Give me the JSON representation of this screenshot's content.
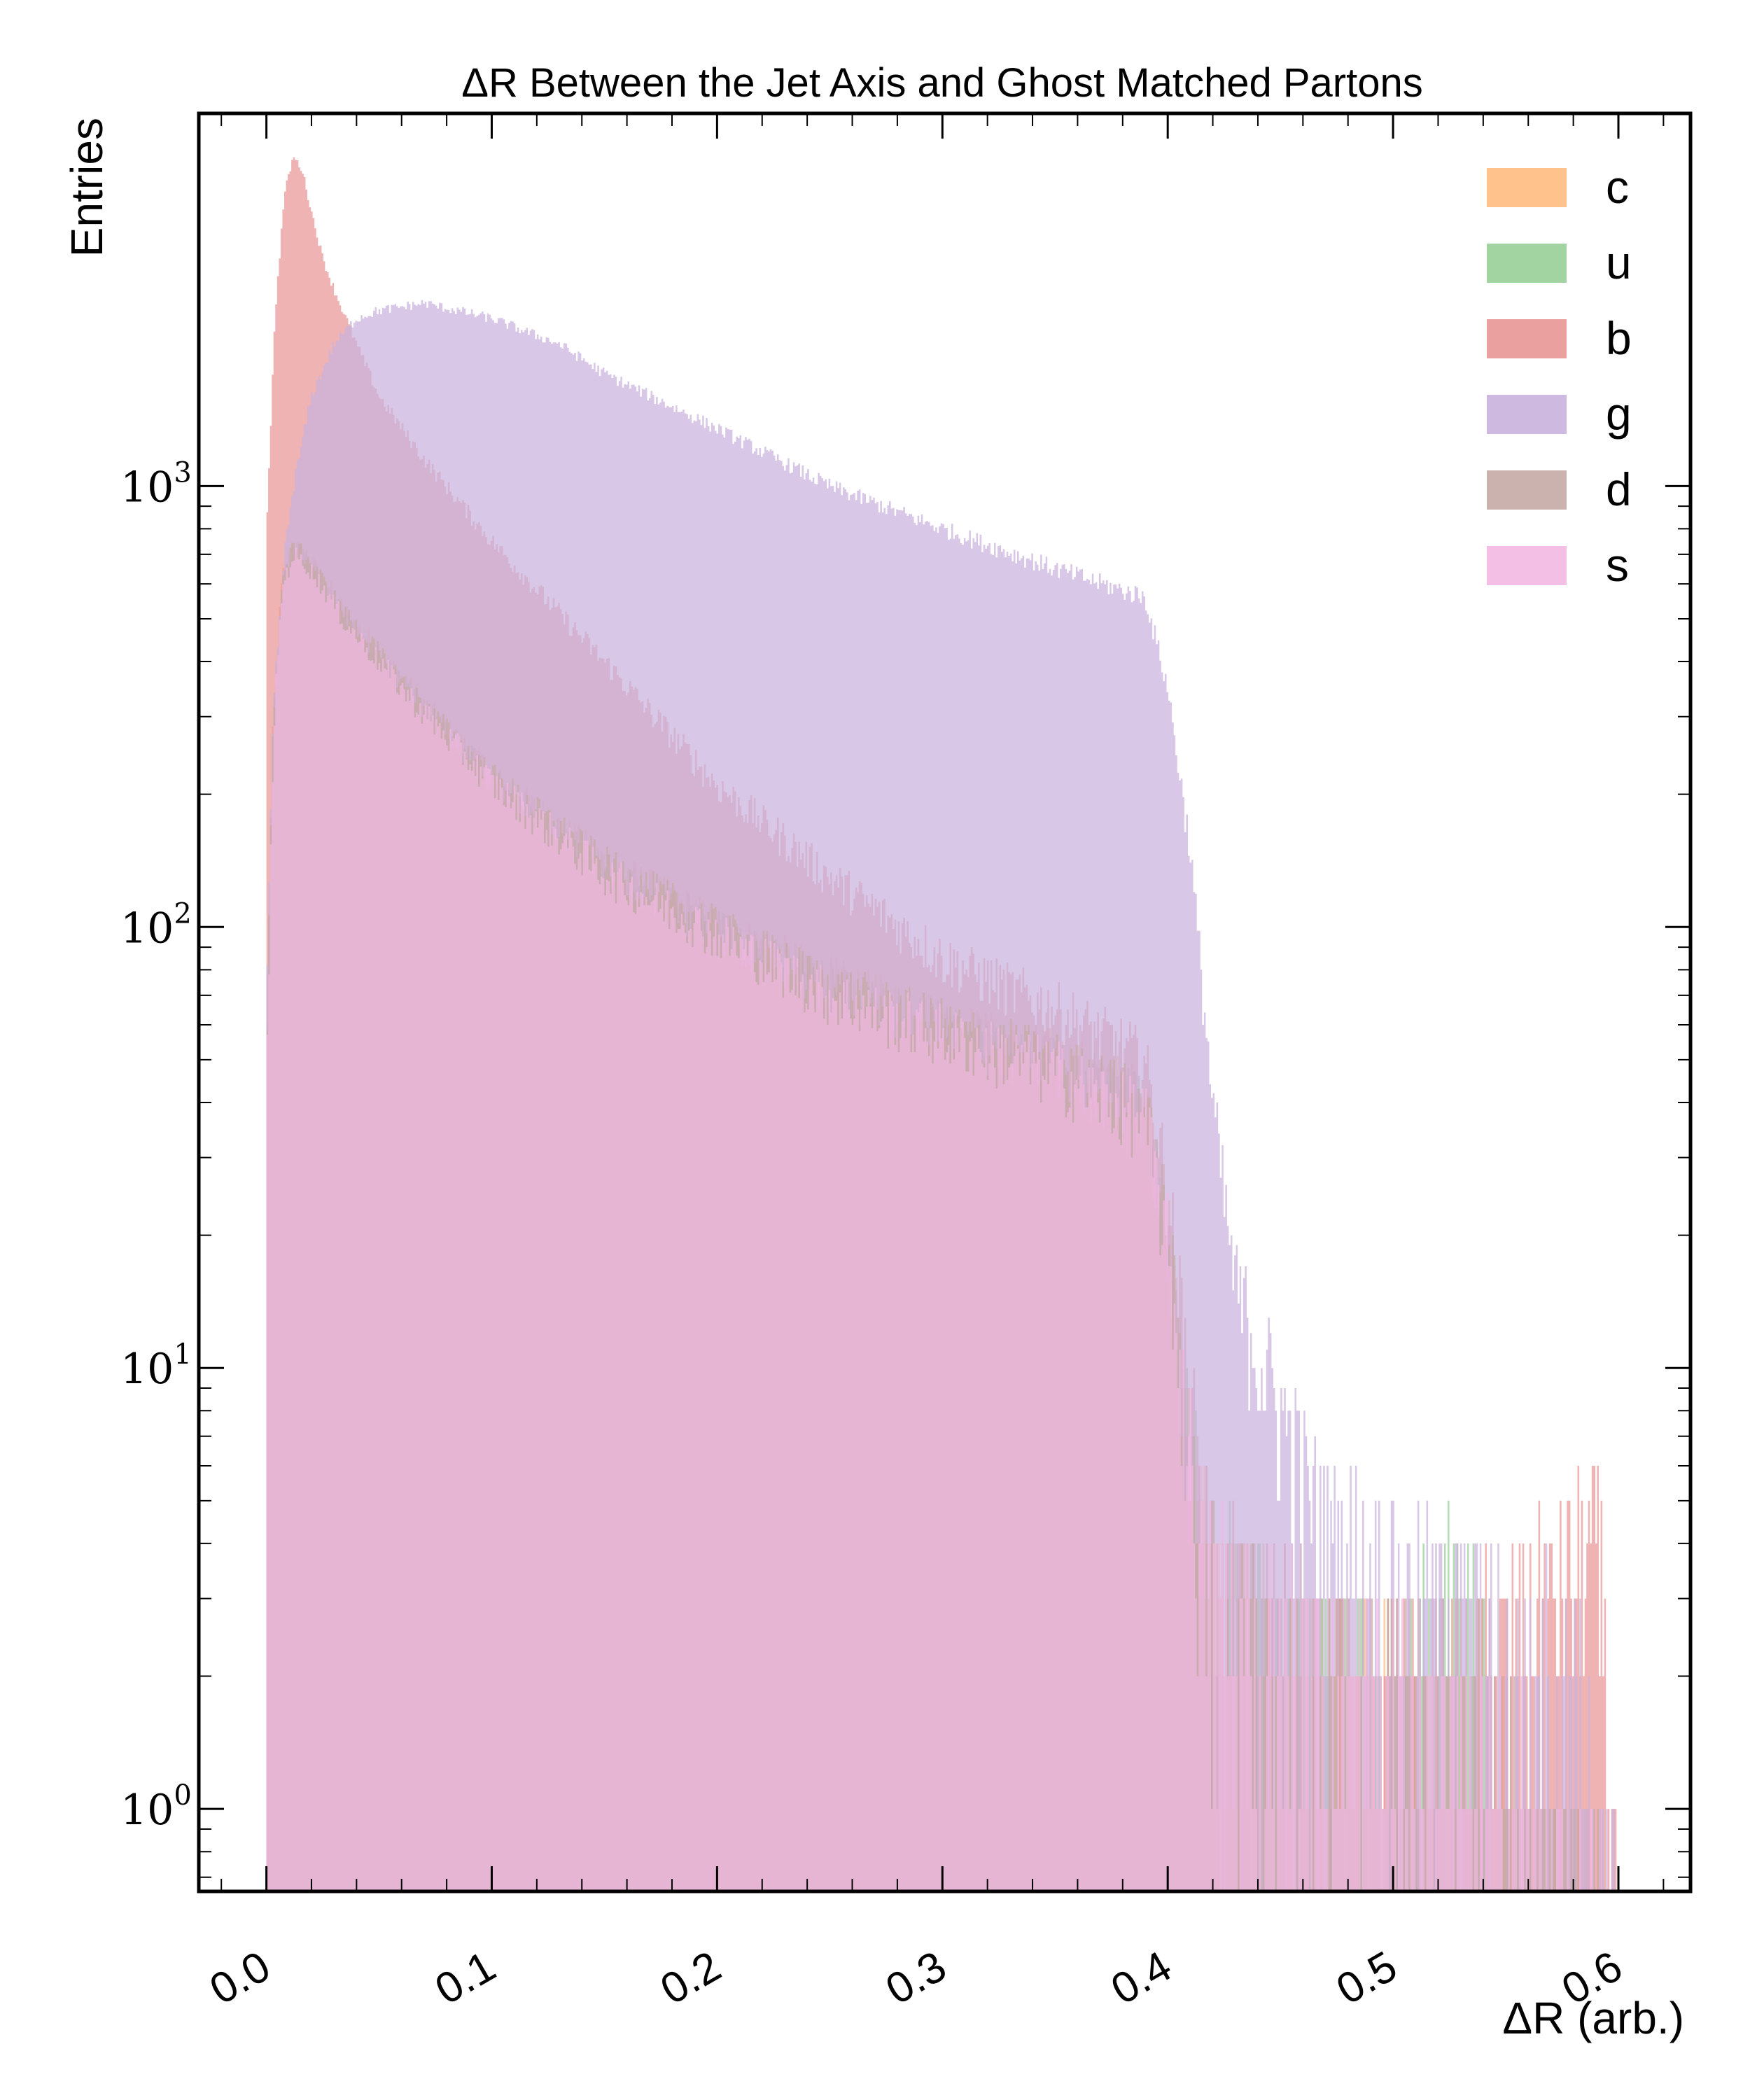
{
  "chart_data": {
    "type": "histogram",
    "title": "ΔR Between the Jet Axis and Ghost Matched Partons",
    "xlabel": "ΔR (arb.)",
    "ylabel": "Entries",
    "xlim": [
      -0.03,
      0.632
    ],
    "ylim": [
      0.65,
      7000
    ],
    "yscale": "log",
    "grid": false,
    "legend_position": "top-right",
    "x_ticks": [
      "0.0",
      "0.1",
      "0.2",
      "0.3",
      "0.4",
      "0.5",
      "0.6"
    ],
    "x_tick_values": [
      0.0,
      0.1,
      0.2,
      0.3,
      0.4,
      0.5,
      0.6
    ],
    "y_ticks": [
      {
        "base": "10",
        "exp": "0",
        "value": 1
      },
      {
        "base": "10",
        "exp": "1",
        "value": 10
      },
      {
        "base": "10",
        "exp": "2",
        "value": 100
      },
      {
        "base": "10",
        "exp": "3",
        "value": 1000
      }
    ],
    "series": [
      {
        "name": "c",
        "color": "#ffbb80",
        "points": [
          [
            0.0,
            60
          ],
          [
            0.003,
            300
          ],
          [
            0.007,
            620
          ],
          [
            0.012,
            740
          ],
          [
            0.018,
            700
          ],
          [
            0.025,
            620
          ],
          [
            0.035,
            520
          ],
          [
            0.05,
            420
          ],
          [
            0.07,
            320
          ],
          [
            0.1,
            220
          ],
          [
            0.15,
            140
          ],
          [
            0.2,
            100
          ],
          [
            0.25,
            75
          ],
          [
            0.3,
            60
          ],
          [
            0.35,
            50
          ],
          [
            0.39,
            40
          ],
          [
            0.4,
            20
          ],
          [
            0.41,
            6
          ],
          [
            0.42,
            3
          ],
          [
            0.45,
            2
          ],
          [
            0.5,
            1.5
          ],
          [
            0.55,
            1
          ],
          [
            0.6,
            0
          ]
        ]
      },
      {
        "name": "u",
        "color": "#98cf98",
        "points": [
          [
            0.0,
            45
          ],
          [
            0.003,
            280
          ],
          [
            0.007,
            600
          ],
          [
            0.012,
            720
          ],
          [
            0.018,
            680
          ],
          [
            0.025,
            600
          ],
          [
            0.035,
            500
          ],
          [
            0.05,
            410
          ],
          [
            0.07,
            310
          ],
          [
            0.1,
            215
          ],
          [
            0.15,
            135
          ],
          [
            0.2,
            98
          ],
          [
            0.25,
            72
          ],
          [
            0.3,
            58
          ],
          [
            0.35,
            48
          ],
          [
            0.39,
            38
          ],
          [
            0.4,
            20
          ],
          [
            0.41,
            6
          ],
          [
            0.42,
            3
          ],
          [
            0.45,
            2
          ],
          [
            0.5,
            1.5
          ],
          [
            0.53,
            3
          ],
          [
            0.55,
            1
          ],
          [
            0.6,
            0
          ]
        ]
      },
      {
        "name": "b",
        "color": "#e99696",
        "points": [
          [
            0.0,
            800
          ],
          [
            0.004,
            2500
          ],
          [
            0.008,
            4600
          ],
          [
            0.012,
            5600
          ],
          [
            0.016,
            5200
          ],
          [
            0.02,
            4200
          ],
          [
            0.025,
            3300
          ],
          [
            0.03,
            2800
          ],
          [
            0.04,
            2100
          ],
          [
            0.05,
            1600
          ],
          [
            0.07,
            1150
          ],
          [
            0.1,
            750
          ],
          [
            0.15,
            400
          ],
          [
            0.2,
            210
          ],
          [
            0.25,
            130
          ],
          [
            0.3,
            85
          ],
          [
            0.35,
            65
          ],
          [
            0.39,
            50
          ],
          [
            0.4,
            25
          ],
          [
            0.41,
            8
          ],
          [
            0.42,
            3
          ],
          [
            0.45,
            2
          ],
          [
            0.5,
            1.5
          ],
          [
            0.55,
            2
          ],
          [
            0.59,
            4
          ],
          [
            0.6,
            0
          ]
        ]
      },
      {
        "name": "g",
        "color": "#c9b1dd",
        "points": [
          [
            0.0,
            60
          ],
          [
            0.003,
            300
          ],
          [
            0.008,
            700
          ],
          [
            0.012,
            1000
          ],
          [
            0.02,
            1600
          ],
          [
            0.03,
            2100
          ],
          [
            0.04,
            2400
          ],
          [
            0.05,
            2500
          ],
          [
            0.07,
            2600
          ],
          [
            0.1,
            2400
          ],
          [
            0.13,
            2100
          ],
          [
            0.15,
            1800
          ],
          [
            0.2,
            1350
          ],
          [
            0.25,
            1000
          ],
          [
            0.3,
            800
          ],
          [
            0.35,
            650
          ],
          [
            0.38,
            580
          ],
          [
            0.39,
            560
          ],
          [
            0.4,
            350
          ],
          [
            0.41,
            150
          ],
          [
            0.42,
            40
          ],
          [
            0.43,
            15
          ],
          [
            0.45,
            8
          ],
          [
            0.47,
            4
          ],
          [
            0.5,
            3
          ],
          [
            0.55,
            2
          ],
          [
            0.58,
            2
          ],
          [
            0.6,
            0
          ]
        ]
      },
      {
        "name": "d",
        "color": "#c5aaa5",
        "points": [
          [
            0.0,
            50
          ],
          [
            0.003,
            290
          ],
          [
            0.007,
            610
          ],
          [
            0.012,
            730
          ],
          [
            0.018,
            690
          ],
          [
            0.025,
            610
          ],
          [
            0.035,
            510
          ],
          [
            0.05,
            415
          ],
          [
            0.07,
            315
          ],
          [
            0.1,
            218
          ],
          [
            0.15,
            138
          ],
          [
            0.2,
            99
          ],
          [
            0.25,
            73
          ],
          [
            0.3,
            59
          ],
          [
            0.35,
            49
          ],
          [
            0.39,
            39
          ],
          [
            0.4,
            20
          ],
          [
            0.41,
            6
          ],
          [
            0.42,
            3
          ],
          [
            0.45,
            2
          ],
          [
            0.5,
            1.5
          ],
          [
            0.55,
            1
          ],
          [
            0.6,
            0
          ]
        ]
      },
      {
        "name": "s",
        "color": "#f2b8e2",
        "points": [
          [
            0.0,
            40
          ],
          [
            0.003,
            270
          ],
          [
            0.007,
            590
          ],
          [
            0.012,
            700
          ],
          [
            0.018,
            660
          ],
          [
            0.025,
            590
          ],
          [
            0.035,
            490
          ],
          [
            0.05,
            400
          ],
          [
            0.07,
            305
          ],
          [
            0.1,
            212
          ],
          [
            0.15,
            132
          ],
          [
            0.2,
            96
          ],
          [
            0.25,
            70
          ],
          [
            0.3,
            57
          ],
          [
            0.35,
            47
          ],
          [
            0.39,
            37
          ],
          [
            0.4,
            19
          ],
          [
            0.41,
            6
          ],
          [
            0.42,
            3
          ],
          [
            0.45,
            2
          ],
          [
            0.5,
            1.5
          ],
          [
            0.55,
            1
          ],
          [
            0.6,
            0
          ]
        ]
      }
    ]
  }
}
